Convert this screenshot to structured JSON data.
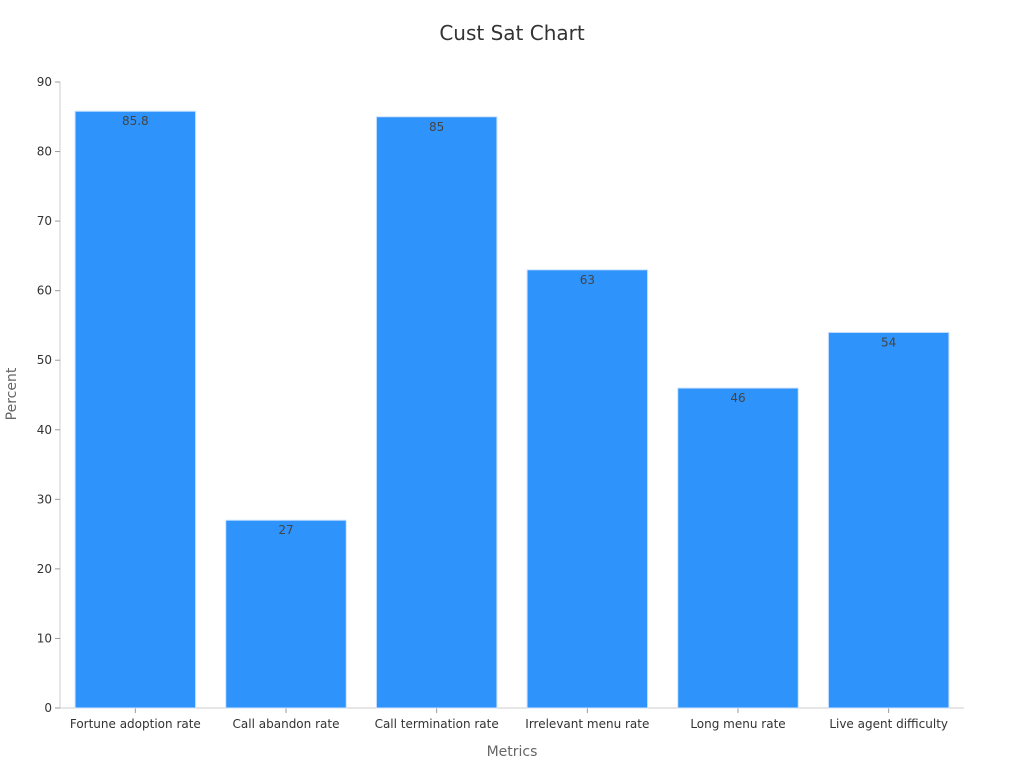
{
  "chart_data": {
    "type": "bar",
    "title": "Cust Sat Chart",
    "xlabel": "Metrics",
    "ylabel": "Percent",
    "categories": [
      "Fortune adoption rate",
      "Call abandon rate",
      "Call termination rate",
      "Irrelevant menu rate",
      "Long menu rate",
      "Live agent difficulty"
    ],
    "values": [
      85.8,
      27,
      85,
      63,
      46,
      54
    ],
    "data_labels": [
      "85.8",
      "27",
      "85",
      "63",
      "46",
      "54"
    ],
    "ylim": [
      0,
      90
    ],
    "yticks": [
      0,
      10,
      20,
      30,
      40,
      50,
      60,
      70,
      80,
      90
    ],
    "grid": false,
    "legend": "none",
    "bar_color": "#2e93fa"
  }
}
